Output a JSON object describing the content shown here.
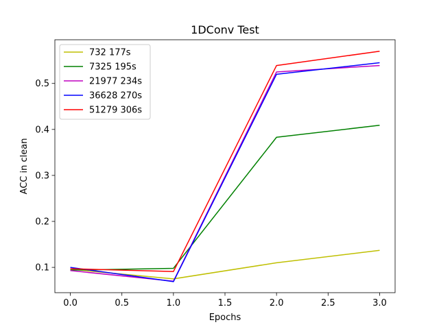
{
  "chart_data": {
    "type": "line",
    "title": "1DConv Test",
    "xlabel": "Epochs",
    "ylabel": "ACC in clean",
    "x": [
      0,
      1,
      2,
      3
    ],
    "xlim": [
      -0.15,
      3.15
    ],
    "ylim": [
      0.045,
      0.595
    ],
    "xticks": [
      0.0,
      0.5,
      1.0,
      1.5,
      2.0,
      2.5,
      3.0
    ],
    "xtick_labels": [
      "0.0",
      "0.5",
      "1.0",
      "1.5",
      "2.0",
      "2.5",
      "3.0"
    ],
    "yticks": [
      0.1,
      0.2,
      0.3,
      0.4,
      0.5
    ],
    "ytick_labels": [
      "0.1",
      "0.2",
      "0.3",
      "0.4",
      "0.5"
    ],
    "grid": false,
    "legend_position": "top-left",
    "series": [
      {
        "name": "732 177s",
        "color": "#bfbf00",
        "values": [
          0.096,
          0.075,
          0.11,
          0.137
        ]
      },
      {
        "name": "7325 195s",
        "color": "#008000",
        "values": [
          0.094,
          0.098,
          0.383,
          0.409
        ]
      },
      {
        "name": "21977 234s",
        "color": "#bf00bf",
        "values": [
          0.093,
          0.07,
          0.525,
          0.539
        ]
      },
      {
        "name": "36628 270s",
        "color": "#0000ff",
        "values": [
          0.1,
          0.069,
          0.52,
          0.545
        ]
      },
      {
        "name": "51279 306s",
        "color": "#ff0000",
        "values": [
          0.097,
          0.091,
          0.539,
          0.57
        ]
      }
    ]
  }
}
